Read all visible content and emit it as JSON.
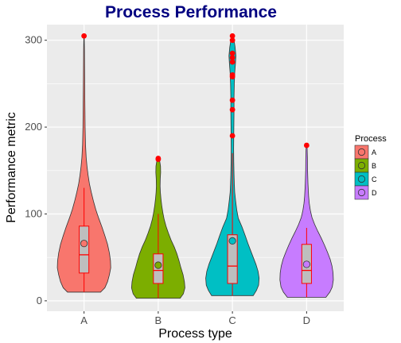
{
  "chart_data": {
    "type": "violin",
    "title": "Process Performance",
    "xlabel": "Process type",
    "ylabel": "Performance metric",
    "categories": [
      "A",
      "B",
      "C",
      "D"
    ],
    "ylim": [
      -12,
      318
    ],
    "yticks": [
      0,
      100,
      200,
      300
    ],
    "grid": true,
    "legend": {
      "title": "Process",
      "position": "right",
      "entries": [
        "A",
        "B",
        "C",
        "D"
      ]
    },
    "colors": {
      "A": "#F8766D",
      "B": "#7CAE00",
      "C": "#00BFC4",
      "D": "#C77CFF",
      "panel": "#EBEBEB",
      "grid": "#FFFFFF",
      "title": "#000080",
      "box_fill": "#BEBEBE",
      "box_line": "#FF0000",
      "outlier": "#FF0000"
    },
    "series": [
      {
        "name": "A",
        "min": 10,
        "max": 305,
        "whisker_low": 10,
        "whisker_high": 130,
        "q1": 32,
        "median": 53,
        "q3": 86,
        "mean": 66,
        "outliers": [
          305
        ],
        "density": [
          [
            10,
            0.62
          ],
          [
            15,
            0.78
          ],
          [
            22,
            0.88
          ],
          [
            30,
            0.95
          ],
          [
            38,
            1.0
          ],
          [
            46,
            0.99
          ],
          [
            55,
            0.95
          ],
          [
            65,
            0.88
          ],
          [
            75,
            0.78
          ],
          [
            85,
            0.67
          ],
          [
            95,
            0.55
          ],
          [
            105,
            0.44
          ],
          [
            115,
            0.35
          ],
          [
            125,
            0.27
          ],
          [
            135,
            0.2
          ],
          [
            145,
            0.15
          ],
          [
            155,
            0.11
          ],
          [
            165,
            0.08
          ],
          [
            180,
            0.055
          ],
          [
            200,
            0.04
          ],
          [
            230,
            0.03
          ],
          [
            260,
            0.022
          ],
          [
            290,
            0.015
          ],
          [
            305,
            0.005
          ]
        ]
      },
      {
        "name": "B",
        "min": 3,
        "max": 164,
        "whisker_low": 3,
        "whisker_high": 100,
        "q1": 20,
        "median": 35,
        "q3": 54,
        "mean": 41,
        "outliers": [
          163,
          164
        ],
        "density": [
          [
            3,
            0.82
          ],
          [
            8,
            0.94
          ],
          [
            15,
            1.0
          ],
          [
            22,
            0.98
          ],
          [
            30,
            0.93
          ],
          [
            38,
            0.85
          ],
          [
            46,
            0.78
          ],
          [
            54,
            0.7
          ],
          [
            62,
            0.6
          ],
          [
            70,
            0.48
          ],
          [
            78,
            0.38
          ],
          [
            86,
            0.29
          ],
          [
            94,
            0.22
          ],
          [
            102,
            0.17
          ],
          [
            110,
            0.13
          ],
          [
            118,
            0.1
          ],
          [
            125,
            0.08
          ],
          [
            132,
            0.07
          ],
          [
            140,
            0.075
          ],
          [
            148,
            0.09
          ],
          [
            155,
            0.085
          ],
          [
            160,
            0.06
          ],
          [
            164,
            0.03
          ]
        ]
      },
      {
        "name": "C",
        "min": 6,
        "max": 305,
        "whisker_low": 6,
        "whisker_high": 170,
        "q1": 20,
        "median": 40,
        "q3": 76,
        "mean": 69,
        "outliers": [
          190,
          220,
          231,
          258,
          260,
          275,
          280,
          285,
          300,
          305
        ],
        "density": [
          [
            6,
            0.78
          ],
          [
            12,
            0.9
          ],
          [
            18,
            0.98
          ],
          [
            26,
            1.0
          ],
          [
            34,
            0.96
          ],
          [
            42,
            0.88
          ],
          [
            50,
            0.78
          ],
          [
            58,
            0.68
          ],
          [
            66,
            0.58
          ],
          [
            75,
            0.48
          ],
          [
            85,
            0.36
          ],
          [
            95,
            0.22
          ],
          [
            105,
            0.16
          ],
          [
            115,
            0.12
          ],
          [
            125,
            0.085
          ],
          [
            135,
            0.07
          ],
          [
            145,
            0.06
          ],
          [
            160,
            0.05
          ],
          [
            175,
            0.045
          ],
          [
            190,
            0.05
          ],
          [
            205,
            0.055
          ],
          [
            220,
            0.06
          ],
          [
            235,
            0.06
          ],
          [
            250,
            0.07
          ],
          [
            262,
            0.085
          ],
          [
            272,
            0.11
          ],
          [
            282,
            0.13
          ],
          [
            292,
            0.1
          ],
          [
            300,
            0.06
          ],
          [
            305,
            0.02
          ]
        ]
      },
      {
        "name": "D",
        "min": 4,
        "max": 179,
        "whisker_low": 4,
        "whisker_high": 84,
        "q1": 20,
        "median": 35,
        "q3": 65,
        "mean": 42,
        "outliers": [
          179
        ],
        "density": [
          [
            4,
            0.72
          ],
          [
            10,
            0.87
          ],
          [
            16,
            0.96
          ],
          [
            24,
            1.0
          ],
          [
            32,
            0.99
          ],
          [
            40,
            0.95
          ],
          [
            48,
            0.88
          ],
          [
            56,
            0.78
          ],
          [
            64,
            0.67
          ],
          [
            72,
            0.55
          ],
          [
            80,
            0.42
          ],
          [
            88,
            0.3
          ],
          [
            96,
            0.2
          ],
          [
            104,
            0.14
          ],
          [
            112,
            0.1
          ],
          [
            120,
            0.075
          ],
          [
            135,
            0.05
          ],
          [
            150,
            0.035
          ],
          [
            165,
            0.03
          ],
          [
            175,
            0.02
          ],
          [
            179,
            0.005
          ]
        ]
      }
    ]
  }
}
